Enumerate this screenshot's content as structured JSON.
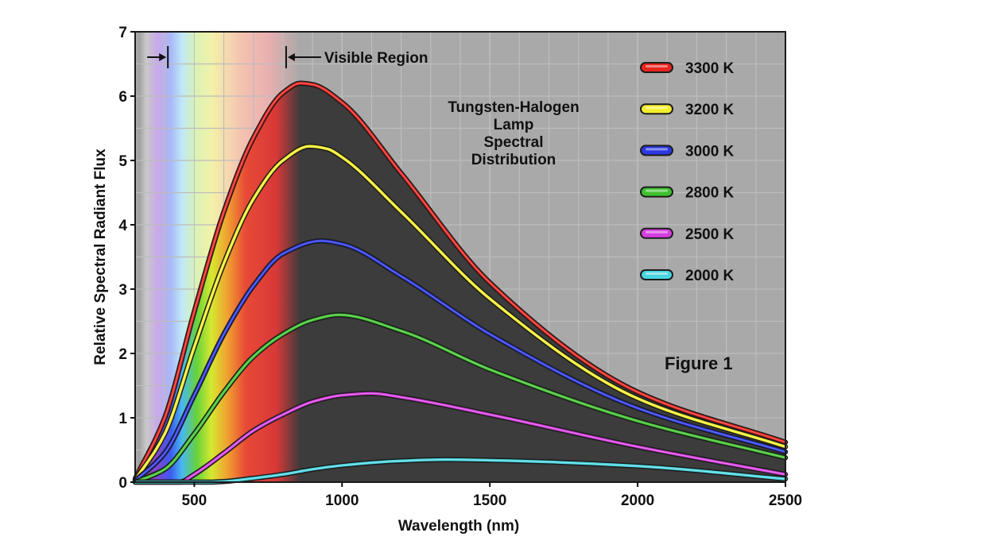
{
  "chart_data": {
    "type": "line",
    "title": "Tungsten-Halogen Lamp Spectral Distribution",
    "title_lines": [
      "Tungsten-Halogen",
      "Lamp",
      "Spectral",
      "Distribution"
    ],
    "xlabel": "Wavelength (nm)",
    "ylabel": "Relative Spectral Radiant Flux",
    "xlim": [
      300,
      2500
    ],
    "ylim": [
      0,
      7
    ],
    "x_ticks": [
      500,
      1000,
      1500,
      2000,
      2500
    ],
    "x_tick_labels": [
      "500",
      "1000",
      "1500",
      "2000",
      "2500"
    ],
    "y_ticks": [
      0,
      1,
      2,
      3,
      4,
      5,
      6,
      7
    ],
    "y_tick_labels": [
      "0",
      "1",
      "2",
      "3",
      "4",
      "5",
      "6",
      "7"
    ],
    "grid": true,
    "legend_position": "top-right",
    "annotations": {
      "visible_region_label": "Visible Region",
      "visible_region_range": [
        400,
        800
      ],
      "figure_label": "Figure 1"
    },
    "series": [
      {
        "name": "3300 K",
        "color": "#e8241f",
        "x": [
          300,
          400,
          500,
          600,
          700,
          800,
          860,
          900,
          1000,
          1200,
          1500,
          2000,
          2500
        ],
        "y": [
          0.05,
          1.0,
          2.65,
          4.2,
          5.35,
          6.05,
          6.2,
          6.18,
          5.9,
          4.8,
          3.1,
          1.4,
          0.62
        ]
      },
      {
        "name": "3200 K",
        "color": "#f4ee2c",
        "x": [
          300,
          400,
          500,
          600,
          700,
          800,
          890,
          950,
          1000,
          1200,
          1500,
          2000,
          2500
        ],
        "y": [
          0.03,
          0.75,
          2.1,
          3.4,
          4.4,
          5.0,
          5.22,
          5.18,
          5.05,
          4.2,
          2.85,
          1.3,
          0.55
        ]
      },
      {
        "name": "3000 K",
        "color": "#2b37e0",
        "x": [
          300,
          400,
          500,
          600,
          700,
          800,
          930,
          1000,
          1200,
          1500,
          2000,
          2500
        ],
        "y": [
          0.02,
          0.45,
          1.35,
          2.3,
          3.05,
          3.55,
          3.75,
          3.7,
          3.2,
          2.3,
          1.15,
          0.47
        ]
      },
      {
        "name": "2800 K",
        "color": "#3fc02f",
        "x": [
          300,
          400,
          500,
          600,
          700,
          800,
          900,
          990,
          1200,
          1500,
          2000,
          2500
        ],
        "y": [
          0.0,
          0.2,
          0.75,
          1.4,
          1.95,
          2.3,
          2.52,
          2.6,
          2.35,
          1.75,
          0.95,
          0.38
        ]
      },
      {
        "name": "2500 K",
        "color": "#d63ee0",
        "x": [
          300,
          450,
          500,
          600,
          700,
          800,
          900,
          1000,
          1100,
          1200,
          1500,
          2000,
          2500
        ],
        "y": [
          0.0,
          0.0,
          0.12,
          0.45,
          0.8,
          1.05,
          1.25,
          1.35,
          1.38,
          1.32,
          1.05,
          0.55,
          0.12
        ]
      },
      {
        "name": "2000 K",
        "color": "#49d6e0",
        "x": [
          300,
          550,
          600,
          700,
          800,
          900,
          1000,
          1200,
          1350,
          1500,
          2000,
          2500
        ],
        "y": [
          0.0,
          0.0,
          0.01,
          0.06,
          0.12,
          0.2,
          0.26,
          0.33,
          0.35,
          0.34,
          0.25,
          0.05
        ]
      }
    ]
  }
}
